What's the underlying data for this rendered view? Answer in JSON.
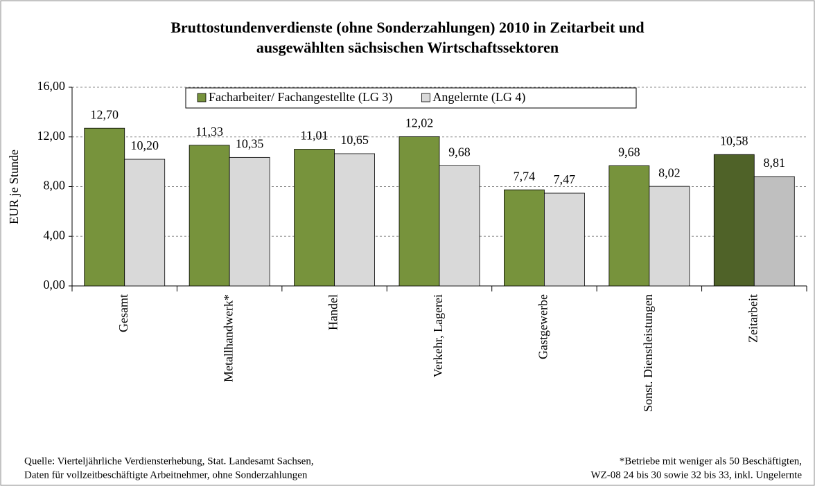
{
  "chart_data": {
    "type": "bar",
    "title": [
      "Bruttostundenverdienste (ohne Sonderzahlungen) 2010 in Zeitarbeit und",
      "ausgewählten sächsischen Wirtschaftssektoren"
    ],
    "y_label": "EUR je Stunde",
    "categories": [
      "Gesamt",
      "Metallhandwerk*",
      "Handel",
      "Verkehr, Lagerei",
      "Gastgewerbe",
      "Sonst. Dienstleistungen",
      "Zeitarbeit"
    ],
    "series": [
      {
        "name": "Facharbeiter/ Fachangestellte (LG 3)",
        "color": "#77933c",
        "colors": [
          "#77933c",
          "#77933c",
          "#77933c",
          "#77933c",
          "#77933c",
          "#77933c",
          "#4f6228"
        ],
        "values": [
          12.7,
          11.33,
          11.01,
          12.02,
          7.74,
          9.68,
          10.58
        ],
        "value_labels": [
          "12,70",
          "11,33",
          "11,01",
          "12,02",
          "7,74",
          "9,68",
          "10,58"
        ]
      },
      {
        "name": "Angelernte (LG 4)",
        "color": "#d9d9d9",
        "colors": [
          "#d9d9d9",
          "#d9d9d9",
          "#d9d9d9",
          "#d9d9d9",
          "#d9d9d9",
          "#d9d9d9",
          "#bfbfbf"
        ],
        "values": [
          10.2,
          10.35,
          10.65,
          9.68,
          7.47,
          8.02,
          8.81
        ],
        "value_labels": [
          "10,20",
          "10,35",
          "10,65",
          "9,68",
          "7,47",
          "8,02",
          "8,81"
        ]
      }
    ],
    "ylim": [
      0,
      16
    ],
    "yticks": [
      {
        "value": 0,
        "label": "0,00"
      },
      {
        "value": 4,
        "label": "4,00"
      },
      {
        "value": 8,
        "label": "8,00"
      },
      {
        "value": 12,
        "label": "12,00"
      },
      {
        "value": 16,
        "label": "16,00"
      }
    ],
    "grid": true,
    "legend": "top",
    "notes": {
      "left": [
        "Quelle: Vierteljährliche Verdiensterhebung, Stat. Landesamt Sachsen,",
        "Daten für vollzeitbeschäftigte Arbeitnehmer, ohne Sonderzahlungen"
      ],
      "right": [
        "*Betriebe mit weniger als 50 Beschäftigten,",
        "WZ-08 24 bis 30 sowie 32 bis 33, inkl. Ungelernte"
      ]
    }
  }
}
